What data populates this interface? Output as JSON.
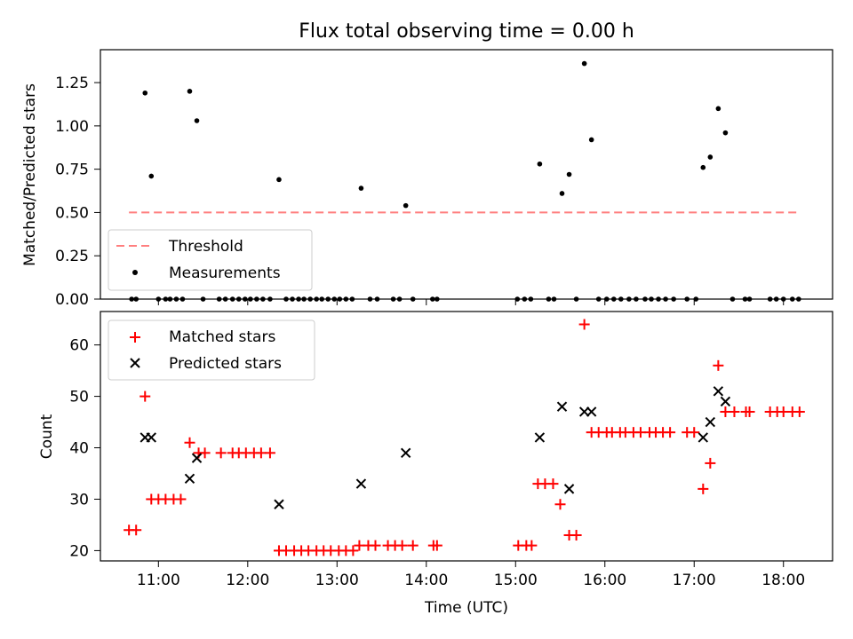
{
  "chart_data": [
    {
      "type": "scatter",
      "title": "Flux total observing time = 0.00 h",
      "xlabel": "",
      "ylabel": "Matched/Predicted stars",
      "xlim": [
        10.35,
        18.55
      ],
      "ylim": [
        0.0,
        1.44
      ],
      "yticks": [
        0.0,
        0.25,
        0.5,
        0.75,
        1.0,
        1.25
      ],
      "ytick_labels": [
        "0.00",
        "0.25",
        "0.50",
        "0.75",
        "1.00",
        "1.25"
      ],
      "legend": {
        "placement": "lower-left",
        "entries": [
          "Threshold",
          "Measurements"
        ]
      },
      "threshold": {
        "name": "Threshold",
        "value": 0.5,
        "x_start": 10.67,
        "x_end": 18.17,
        "color": "#ff7f7f",
        "style": "dashed"
      },
      "series": [
        {
          "name": "Measurements",
          "color": "#000000",
          "marker": "dot",
          "x": [
            10.7,
            10.75,
            10.85,
            10.92,
            11.0,
            11.08,
            11.13,
            11.2,
            11.27,
            11.35,
            11.43,
            11.5,
            11.68,
            11.75,
            11.83,
            11.9,
            11.97,
            12.03,
            12.1,
            12.17,
            12.25,
            12.35,
            12.43,
            12.5,
            12.57,
            12.63,
            12.7,
            12.77,
            12.83,
            12.9,
            12.97,
            13.03,
            13.1,
            13.17,
            13.27,
            13.37,
            13.45,
            13.63,
            13.7,
            13.77,
            13.85,
            14.07,
            14.12,
            15.02,
            15.1,
            15.17,
            15.27,
            15.37,
            15.43,
            15.52,
            15.6,
            15.68,
            15.77,
            15.85,
            15.93,
            16.02,
            16.1,
            16.18,
            16.27,
            16.35,
            16.45,
            16.52,
            16.6,
            16.68,
            16.77,
            16.92,
            17.02,
            17.1,
            17.18,
            17.27,
            17.35,
            17.43,
            17.57,
            17.62,
            17.85,
            17.92,
            18.0,
            18.1,
            18.17
          ],
          "y": [
            0.0,
            0.0,
            1.19,
            0.71,
            0.0,
            0.0,
            0.0,
            0.0,
            0.0,
            1.2,
            1.03,
            0.0,
            0.0,
            0.0,
            0.0,
            0.0,
            0.0,
            0.0,
            0.0,
            0.0,
            0.0,
            0.69,
            0.0,
            0.0,
            0.0,
            0.0,
            0.0,
            0.0,
            0.0,
            0.0,
            0.0,
            0.0,
            0.0,
            0.0,
            0.64,
            0.0,
            0.0,
            0.0,
            0.0,
            0.54,
            0.0,
            0.0,
            0.0,
            0.0,
            0.0,
            0.0,
            0.78,
            0.0,
            0.0,
            0.61,
            0.72,
            0.0,
            1.36,
            0.92,
            0.0,
            0.0,
            0.0,
            0.0,
            0.0,
            0.0,
            0.0,
            0.0,
            0.0,
            0.0,
            0.0,
            0.0,
            0.0,
            0.76,
            0.82,
            1.1,
            0.96,
            0.0,
            0.0,
            0.0,
            0.0,
            0.0,
            0.0,
            0.0,
            0.0
          ]
        }
      ]
    },
    {
      "type": "scatter",
      "title": "",
      "xlabel": "Time (UTC)",
      "ylabel": "Count",
      "xlim": [
        10.35,
        18.55
      ],
      "ylim": [
        18.0,
        66.5
      ],
      "xticks": [
        11,
        12,
        13,
        14,
        15,
        16,
        17,
        18
      ],
      "xtick_labels": [
        "11:00",
        "12:00",
        "13:00",
        "14:00",
        "15:00",
        "16:00",
        "17:00",
        "18:00"
      ],
      "yticks": [
        20,
        30,
        40,
        50,
        60
      ],
      "ytick_labels": [
        "20",
        "30",
        "40",
        "50",
        "60"
      ],
      "legend": {
        "placement": "upper-left",
        "entries": [
          "Matched stars",
          "Predicted stars"
        ]
      },
      "series": [
        {
          "name": "Matched stars",
          "color": "#ff0000",
          "marker": "plus",
          "x": [
            10.67,
            10.75,
            10.85,
            10.92,
            11.0,
            11.08,
            11.17,
            11.25,
            11.35,
            11.45,
            11.52,
            11.7,
            11.83,
            11.9,
            11.98,
            12.07,
            12.15,
            12.25,
            12.35,
            12.43,
            12.52,
            12.6,
            12.68,
            12.77,
            12.85,
            12.93,
            13.02,
            13.1,
            13.18,
            13.25,
            13.35,
            13.43,
            13.57,
            13.65,
            13.73,
            13.85,
            14.08,
            14.12,
            15.03,
            15.12,
            15.18,
            15.25,
            15.33,
            15.42,
            15.5,
            15.6,
            15.68,
            15.77,
            15.85,
            15.93,
            16.02,
            16.08,
            16.17,
            16.23,
            16.32,
            16.4,
            16.5,
            16.57,
            16.65,
            16.73,
            16.92,
            17.0,
            17.1,
            17.18,
            17.27,
            17.35,
            17.45,
            17.58,
            17.62,
            17.85,
            17.93,
            18.0,
            18.1,
            18.18
          ],
          "y": [
            24,
            24,
            50,
            30,
            30,
            30,
            30,
            30,
            41,
            39,
            39,
            39,
            39,
            39,
            39,
            39,
            39,
            39,
            20,
            20,
            20,
            20,
            20,
            20,
            20,
            20,
            20,
            20,
            20,
            21,
            21,
            21,
            21,
            21,
            21,
            21,
            21,
            21,
            21,
            21,
            21,
            33,
            33,
            33,
            29,
            23,
            23,
            64,
            43,
            43,
            43,
            43,
            43,
            43,
            43,
            43,
            43,
            43,
            43,
            43,
            43,
            43,
            32,
            37,
            56,
            47,
            47,
            47,
            47,
            47,
            47,
            47,
            47,
            47
          ]
        },
        {
          "name": "Predicted stars",
          "color": "#000000",
          "marker": "x",
          "x": [
            10.85,
            10.92,
            11.35,
            11.43,
            12.35,
            13.27,
            13.77,
            15.27,
            15.52,
            15.6,
            15.77,
            15.85,
            17.1,
            17.18,
            17.27,
            17.35
          ],
          "y": [
            42,
            42,
            34,
            38,
            29,
            33,
            39,
            42,
            48,
            32,
            47,
            47,
            42,
            45,
            51,
            49
          ]
        }
      ]
    }
  ]
}
